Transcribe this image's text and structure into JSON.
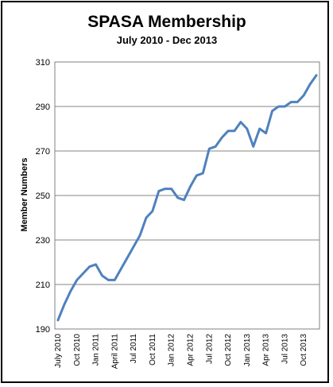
{
  "chart_data": {
    "type": "line",
    "title": "SPASA Membership",
    "subtitle": "July 2010 - Dec 2013",
    "xlabel": "",
    "ylabel": "Member Numbers",
    "ylim": [
      190,
      310
    ],
    "yticks": [
      310,
      290,
      270,
      250,
      230,
      210,
      190
    ],
    "grid": true,
    "legend": "none",
    "line_color": "#4F81BD",
    "x_tick_labels": [
      "July 2010",
      "Oct 2010",
      "Jan 2011",
      "April 2011",
      "Jul 2011",
      "Oct 2011",
      "Jan 2012",
      "Apr 2012",
      "Jul 2012",
      "Oct 2012",
      "Jan 2013",
      "Apr 2013",
      "Jul 2013",
      "Oct 2013"
    ],
    "x": [
      "Jul 2010",
      "Aug 2010",
      "Sep 2010",
      "Oct 2010",
      "Nov 2010",
      "Dec 2010",
      "Jan 2011",
      "Feb 2011",
      "Mar 2011",
      "Apr 2011",
      "May 2011",
      "Jun 2011",
      "Jul 2011",
      "Aug 2011",
      "Sep 2011",
      "Oct 2011",
      "Nov 2011",
      "Dec 2011",
      "Jan 2012",
      "Feb 2012",
      "Mar 2012",
      "Apr 2012",
      "May 2012",
      "Jun 2012",
      "Jul 2012",
      "Aug 2012",
      "Sep 2012",
      "Oct 2012",
      "Nov 2012",
      "Dec 2012",
      "Jan 2013",
      "Feb 2013",
      "Mar 2013",
      "Apr 2013",
      "May 2013",
      "Jun 2013",
      "Jul 2013",
      "Aug 2013",
      "Sep 2013",
      "Oct 2013",
      "Nov 2013",
      "Dec 2013"
    ],
    "series": [
      {
        "values": [
          194,
          201,
          207,
          212,
          215,
          218,
          219,
          214,
          212,
          212,
          217,
          222,
          227,
          232,
          240,
          243,
          252,
          253,
          253,
          249,
          248,
          254,
          259,
          260,
          271,
          272,
          276,
          279,
          279,
          283,
          280,
          272,
          280,
          278,
          288,
          290,
          290,
          292,
          292,
          295,
          300,
          304
        ]
      }
    ]
  }
}
